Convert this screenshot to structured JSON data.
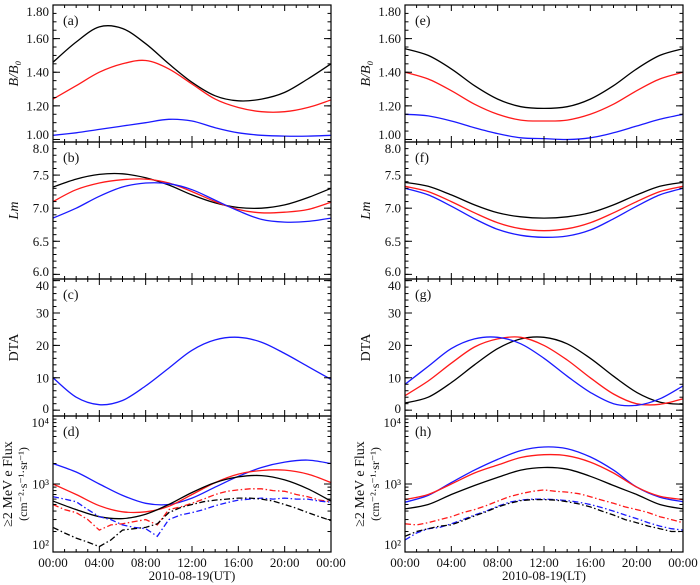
{
  "figure": {
    "xticklabels": [
      "00:00",
      "04:00",
      "08:00",
      "12:00",
      "16:00",
      "20:00",
      "00:00"
    ],
    "xlabel_left": "2010-08-19(UT)",
    "xlabel_right": "2010-08-19(LT)",
    "x_hours": [
      0,
      2,
      4,
      6,
      8,
      10,
      12,
      14,
      16,
      18,
      20,
      22,
      24
    ],
    "x_hours_hourly": [
      0,
      1,
      2,
      3,
      4,
      5,
      6,
      7,
      8,
      9,
      10,
      11,
      12,
      13,
      14,
      15,
      16,
      17,
      18,
      19,
      20,
      21,
      22,
      23,
      24
    ],
    "colors": {
      "black": "#000000",
      "red": "#ff1a1a",
      "blue": "#1a1aff"
    }
  },
  "chart_data": [
    {
      "id": "a",
      "label": "(a)",
      "side": "left",
      "row": 0,
      "type": "line",
      "ylabel": "B/B₀",
      "ylabel_italic": true,
      "yscale": "linear",
      "ylim": [
        0.985,
        1.8
      ],
      "yticks": [
        1.0,
        1.2,
        1.4,
        1.6,
        1.8
      ],
      "yticklabels": [
        "1.00",
        "1.20",
        "1.40",
        "1.60",
        "1.80"
      ],
      "yminor": 0.05,
      "series": [
        {
          "name": "black",
          "color": "black",
          "style": "solid",
          "values": [
            1.46,
            1.58,
            1.67,
            1.66,
            1.57,
            1.45,
            1.34,
            1.26,
            1.23,
            1.24,
            1.28,
            1.36,
            1.45
          ]
        },
        {
          "name": "red",
          "color": "red",
          "style": "solid",
          "values": [
            1.24,
            1.32,
            1.4,
            1.45,
            1.47,
            1.42,
            1.33,
            1.24,
            1.19,
            1.165,
            1.165,
            1.19,
            1.235
          ]
        },
        {
          "name": "blue",
          "color": "blue",
          "style": "solid",
          "values": [
            1.025,
            1.04,
            1.06,
            1.08,
            1.1,
            1.12,
            1.11,
            1.07,
            1.04,
            1.025,
            1.02,
            1.02,
            1.025
          ]
        }
      ]
    },
    {
      "id": "b",
      "label": "(b)",
      "side": "left",
      "row": 1,
      "type": "line",
      "ylabel": "Lm",
      "ylabel_italic": true,
      "yscale": "linear",
      "ylim": [
        5.93,
        8.0
      ],
      "yticks": [
        6.0,
        6.5,
        7.0,
        7.5,
        8.0
      ],
      "yticklabels": [
        "6.0",
        "6.5",
        "7.0",
        "7.5",
        "8.0"
      ],
      "yminor": 0.1,
      "series": [
        {
          "name": "black",
          "color": "black",
          "style": "solid",
          "values": [
            7.32,
            7.44,
            7.51,
            7.52,
            7.46,
            7.35,
            7.2,
            7.08,
            7.01,
            7.0,
            7.05,
            7.16,
            7.3
          ]
        },
        {
          "name": "red",
          "color": "red",
          "style": "solid",
          "values": [
            7.1,
            7.28,
            7.38,
            7.43,
            7.44,
            7.38,
            7.25,
            7.1,
            6.98,
            6.93,
            6.94,
            6.98,
            7.09
          ]
        },
        {
          "name": "blue",
          "color": "blue",
          "style": "solid",
          "values": [
            6.85,
            7.0,
            7.18,
            7.32,
            7.38,
            7.37,
            7.28,
            7.12,
            6.96,
            6.83,
            6.79,
            6.8,
            6.85
          ]
        }
      ]
    },
    {
      "id": "c",
      "label": "(c)",
      "side": "left",
      "row": 2,
      "type": "line",
      "ylabel": "DTA",
      "ylabel_italic": false,
      "yscale": "linear",
      "ylim": [
        -1.8,
        40.5
      ],
      "yticks": [
        0,
        10,
        20,
        30,
        40
      ],
      "yticklabels": [
        "0",
        "10",
        "20",
        "30",
        "40"
      ],
      "yminor": 2,
      "series": [
        {
          "name": "blue",
          "color": "blue",
          "style": "solid",
          "values": [
            10,
            4,
            1.7,
            3,
            7.5,
            13,
            18.5,
            21.7,
            22.5,
            21,
            17.5,
            13.5,
            9.5
          ]
        }
      ]
    },
    {
      "id": "d",
      "label": "(d)",
      "side": "left",
      "row": 3,
      "type": "line",
      "ylabel": "≥2 MeV e Flux",
      "ylabel2": "(cm⁻²·s⁻¹·sr⁻¹)",
      "ylabel_italic": false,
      "yscale": "log",
      "ylim": [
        100,
        10000
      ],
      "yticks": [
        100,
        1000,
        10000
      ],
      "yticklabels": [
        "10²",
        "10³",
        "10⁴"
      ],
      "series": [
        {
          "name": "blue model",
          "color": "blue",
          "style": "solid",
          "values": [
            2000,
            1500,
            1000,
            680,
            520,
            500,
            620,
            900,
            1300,
            1750,
            2100,
            2250,
            2000
          ]
        },
        {
          "name": "red model",
          "color": "red",
          "style": "solid",
          "values": [
            1000,
            700,
            480,
            390,
            390,
            470,
            700,
            1050,
            1400,
            1580,
            1600,
            1400,
            1050
          ]
        },
        {
          "name": "black model",
          "color": "black",
          "style": "solid",
          "values": [
            560,
            420,
            330,
            310,
            360,
            500,
            750,
            1050,
            1270,
            1330,
            1150,
            850,
            560
          ]
        },
        {
          "name": "red observed",
          "color": "red",
          "style": "dashdot",
          "hourly": true,
          "values": [
            500,
            420,
            380,
            300,
            210,
            250,
            260,
            280,
            300,
            250,
            420,
            460,
            520,
            600,
            700,
            780,
            820,
            850,
            850,
            800,
            780,
            700,
            650,
            580,
            550
          ]
        },
        {
          "name": "blue observed",
          "color": "blue",
          "style": "dashdot",
          "hourly": true,
          "values": [
            650,
            600,
            550,
            420,
            330,
            300,
            250,
            230,
            220,
            170,
            300,
            350,
            380,
            420,
            480,
            530,
            580,
            600,
            620,
            600,
            620,
            600,
            600,
            560,
            540
          ]
        },
        {
          "name": "black observed",
          "color": "black",
          "style": "dashdot",
          "hourly": true,
          "values": [
            230,
            190,
            160,
            140,
            120,
            150,
            210,
            220,
            230,
            260,
            380,
            450,
            500,
            550,
            580,
            600,
            620,
            620,
            600,
            560,
            500,
            440,
            380,
            330,
            290
          ]
        }
      ]
    },
    {
      "id": "e",
      "label": "(e)",
      "side": "right",
      "row": 0,
      "type": "line",
      "ylabel": "B/B₀",
      "ylabel_italic": true,
      "yscale": "linear",
      "ylim": [
        0.985,
        1.8
      ],
      "yticks": [
        1.0,
        1.2,
        1.4,
        1.6,
        1.8
      ],
      "yticklabels": [
        "1.00",
        "1.20",
        "1.40",
        "1.60",
        "1.80"
      ],
      "yminor": 0.05,
      "series": [
        {
          "name": "black",
          "color": "black",
          "style": "solid",
          "values": [
            1.54,
            1.5,
            1.42,
            1.32,
            1.24,
            1.195,
            1.185,
            1.195,
            1.24,
            1.32,
            1.42,
            1.5,
            1.54
          ]
        },
        {
          "name": "red",
          "color": "red",
          "style": "solid",
          "values": [
            1.4,
            1.36,
            1.29,
            1.21,
            1.15,
            1.115,
            1.11,
            1.115,
            1.15,
            1.21,
            1.29,
            1.36,
            1.4
          ]
        },
        {
          "name": "blue",
          "color": "blue",
          "style": "solid",
          "values": [
            1.15,
            1.14,
            1.11,
            1.07,
            1.035,
            1.01,
            1.005,
            1.0,
            1.01,
            1.04,
            1.08,
            1.12,
            1.15
          ]
        }
      ]
    },
    {
      "id": "f",
      "label": "(f)",
      "side": "right",
      "row": 1,
      "type": "line",
      "ylabel": "Lm",
      "ylabel_italic": true,
      "yscale": "linear",
      "ylim": [
        5.93,
        8.0
      ],
      "yticks": [
        6.0,
        6.5,
        7.0,
        7.5,
        8.0
      ],
      "yticklabels": [
        "6.0",
        "6.5",
        "7.0",
        "7.5",
        "8.0"
      ],
      "yminor": 0.1,
      "series": [
        {
          "name": "black",
          "color": "black",
          "style": "solid",
          "values": [
            7.39,
            7.33,
            7.2,
            7.05,
            6.93,
            6.87,
            6.85,
            6.87,
            6.93,
            7.05,
            7.2,
            7.33,
            7.39
          ]
        },
        {
          "name": "red",
          "color": "red",
          "style": "solid",
          "values": [
            7.33,
            7.25,
            7.1,
            6.93,
            6.78,
            6.69,
            6.66,
            6.69,
            6.78,
            6.93,
            7.1,
            7.25,
            7.33
          ]
        },
        {
          "name": "blue",
          "color": "blue",
          "style": "solid",
          "values": [
            7.3,
            7.2,
            7.03,
            6.84,
            6.68,
            6.59,
            6.56,
            6.58,
            6.67,
            6.84,
            7.03,
            7.2,
            7.3
          ]
        }
      ]
    },
    {
      "id": "g",
      "label": "(g)",
      "side": "right",
      "row": 2,
      "type": "line",
      "ylabel": "DTA",
      "ylabel_italic": false,
      "yscale": "linear",
      "ylim": [
        -1.8,
        40.5
      ],
      "yticks": [
        0,
        10,
        20,
        30,
        40
      ],
      "yticklabels": [
        "0",
        "10",
        "20",
        "30",
        "40"
      ],
      "yminor": 2,
      "series": [
        {
          "name": "black",
          "color": "black",
          "style": "solid",
          "values": [
            2.2,
            4,
            8.5,
            14,
            19,
            22,
            22.5,
            20.5,
            16,
            10.5,
            5.5,
            2.5,
            1.8
          ]
        },
        {
          "name": "red",
          "color": "red",
          "style": "solid",
          "values": [
            4.5,
            9,
            14.5,
            19.5,
            22,
            22.5,
            20,
            15.5,
            10,
            5,
            2,
            1.8,
            3.5
          ]
        },
        {
          "name": "blue",
          "color": "blue",
          "style": "solid",
          "values": [
            8,
            13.5,
            19,
            22,
            22.5,
            20.5,
            16,
            10.5,
            5.5,
            2,
            1.5,
            3.5,
            7.5
          ]
        }
      ]
    },
    {
      "id": "h",
      "label": "(h)",
      "side": "right",
      "row": 3,
      "type": "line",
      "ylabel": "≥2 MeV e Flux",
      "ylabel2": "(cm⁻²·s⁻¹·sr⁻¹)",
      "ylabel_italic": false,
      "yscale": "log",
      "ylim": [
        100,
        10000
      ],
      "yticks": [
        100,
        1000,
        10000
      ],
      "yticklabels": [
        "10²",
        "10³",
        "10⁴"
      ],
      "series": [
        {
          "name": "blue model",
          "color": "blue",
          "style": "solid",
          "values": [
            540,
            680,
            1050,
            1600,
            2300,
            3100,
            3500,
            3300,
            2500,
            1600,
            900,
            640,
            550
          ]
        },
        {
          "name": "red model",
          "color": "red",
          "style": "solid",
          "values": [
            590,
            700,
            1000,
            1450,
            1900,
            2450,
            2700,
            2600,
            2100,
            1450,
            900,
            660,
            590
          ]
        },
        {
          "name": "black model",
          "color": "black",
          "style": "solid",
          "values": [
            430,
            500,
            700,
            950,
            1250,
            1600,
            1750,
            1650,
            1300,
            950,
            700,
            500,
            430
          ]
        },
        {
          "name": "red observed",
          "color": "red",
          "style": "dashdot",
          "hourly": true,
          "values": [
            260,
            250,
            270,
            300,
            330,
            380,
            420,
            480,
            560,
            650,
            720,
            780,
            820,
            780,
            760,
            720,
            650,
            580,
            520,
            460,
            420,
            380,
            330,
            300,
            270
          ]
        },
        {
          "name": "blue observed",
          "color": "blue",
          "style": "dashdot",
          "hourly": true,
          "values": [
            150,
            190,
            220,
            230,
            260,
            300,
            350,
            400,
            470,
            540,
            580,
            600,
            600,
            590,
            570,
            540,
            500,
            450,
            400,
            350,
            310,
            270,
            240,
            220,
            210
          ]
        },
        {
          "name": "black observed",
          "color": "black",
          "style": "dashdot",
          "hourly": true,
          "values": [
            170,
            200,
            220,
            240,
            250,
            290,
            340,
            390,
            460,
            520,
            570,
            590,
            590,
            580,
            550,
            510,
            460,
            400,
            350,
            300,
            270,
            240,
            220,
            200,
            200
          ]
        }
      ]
    }
  ]
}
